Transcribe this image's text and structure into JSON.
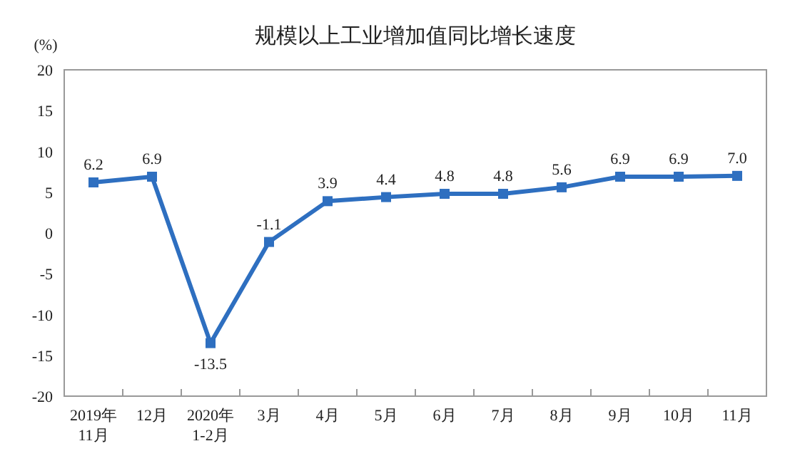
{
  "chart_data": {
    "type": "line",
    "title": "规模以上工业增加值同比增长速度",
    "ylabel": "(%)",
    "categories": [
      "2019年\n11月",
      "12月",
      "2020年\n1-2月",
      "3月",
      "4月",
      "5月",
      "6月",
      "7月",
      "8月",
      "9月",
      "10月",
      "11月"
    ],
    "series": [
      {
        "color": "#2e6fc0",
        "values": [
          6.2,
          6.9,
          -13.5,
          -1.1,
          3.9,
          4.4,
          4.8,
          4.8,
          5.6,
          6.9,
          6.9,
          7.0
        ]
      }
    ],
    "value_labels": [
      "6.2",
      "6.9",
      "-13.5",
      "-1.1",
      "3.9",
      "4.4",
      "4.8",
      "4.8",
      "5.6",
      "6.9",
      "6.9",
      "7.0"
    ],
    "ylim": [
      -20,
      20
    ],
    "yticks": [
      -20,
      -15,
      -10,
      -5,
      0,
      5,
      10,
      15,
      20
    ],
    "marker": "square",
    "line_style": "solid",
    "grid": false
  }
}
